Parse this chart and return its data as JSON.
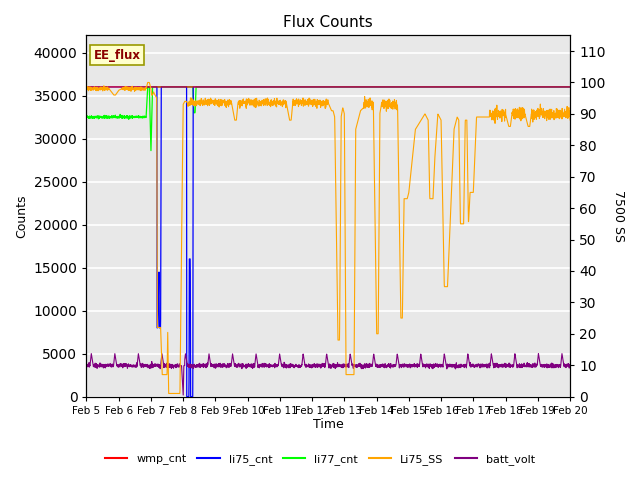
{
  "title": "Flux Counts",
  "xlabel": "Time",
  "ylabel_left": "Counts",
  "ylabel_right": "7500 SS",
  "annotation": "EE_flux",
  "ylim_left": [
    0,
    42000
  ],
  "ylim_right": [
    0,
    115
  ],
  "yticks_left": [
    0,
    5000,
    10000,
    15000,
    20000,
    25000,
    30000,
    35000,
    40000
  ],
  "yticks_right": [
    0,
    10,
    20,
    30,
    40,
    50,
    60,
    70,
    80,
    90,
    100,
    110
  ],
  "xtick_labels": [
    "Feb 5",
    "Feb 6",
    "Feb 7",
    "Feb 8",
    "Feb 9",
    "Feb 10",
    "Feb 11",
    "Feb 12",
    "Feb 13",
    "Feb 14",
    "Feb 15",
    "Feb 16",
    "Feb 17",
    "Feb 18",
    "Feb 19",
    "Feb 20"
  ],
  "bg_color": "#e8e8e8",
  "grid_color": "white",
  "legend_entries": [
    {
      "label": "wmp_cnt",
      "color": "red"
    },
    {
      "label": "li75_cnt",
      "color": "blue"
    },
    {
      "label": "li77_cnt",
      "color": "lime"
    },
    {
      "label": "Li75_SS",
      "color": "orange"
    },
    {
      "label": "batt_volt",
      "color": "purple"
    }
  ]
}
